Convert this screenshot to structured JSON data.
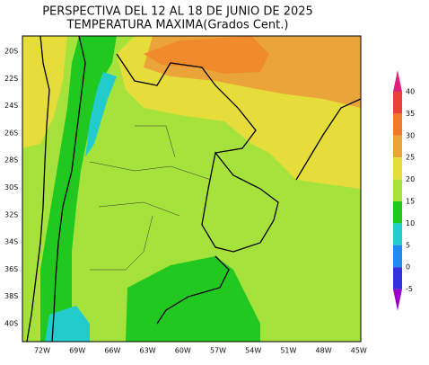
{
  "header": {
    "title": "PERSPECTIVA DEL 12 AL 18 DE JUNIO DE 2025",
    "subtitle": "TEMPERATURA MAXIMA(Grados Cent.)"
  },
  "map": {
    "lat_labels": [
      "20S",
      "22S",
      "24S",
      "26S",
      "28S",
      "30S",
      "32S",
      "34S",
      "36S",
      "38S",
      "40S"
    ],
    "lon_labels": [
      "72W",
      "69W",
      "66W",
      "63W",
      "60W",
      "57W",
      "54W",
      "51W",
      "48W",
      "45W"
    ]
  },
  "colorbar": {
    "ticks": [
      40,
      35,
      30,
      25,
      20,
      15,
      10,
      5,
      0,
      -5
    ]
  }
}
